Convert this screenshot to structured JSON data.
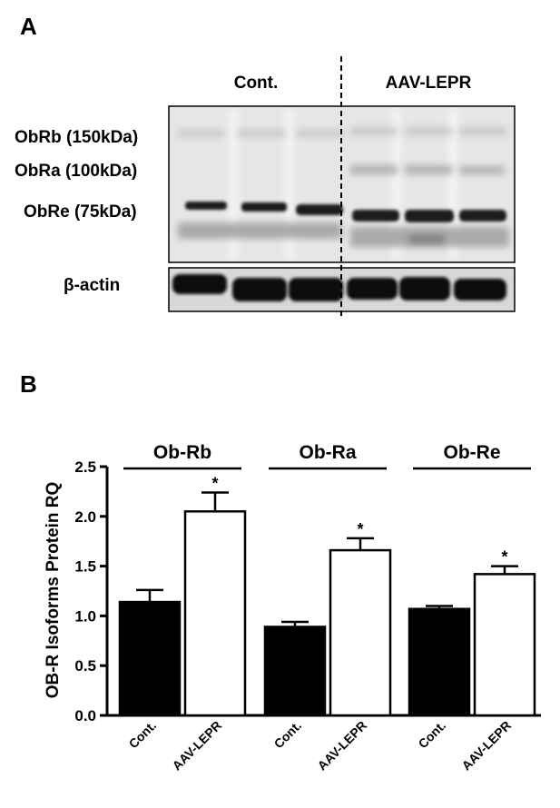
{
  "panel_a": {
    "panel_label": "A",
    "group_labels": [
      "Cont.",
      "AAV-LEPR"
    ],
    "band_labels": [
      "ObRb (150kDa)",
      "ObRa (100kDa)",
      "ObRe (75kDa)"
    ],
    "loading_label": "β-actin",
    "lanes_per_group": 3
  },
  "panel_b": {
    "panel_label": "B"
  },
  "chart_data": {
    "type": "bar",
    "ylabel": "OB-R Isoforms Protein RQ",
    "ylim": [
      0,
      2.5
    ],
    "yticks": [
      0.0,
      0.5,
      1.0,
      1.5,
      2.0,
      2.5
    ],
    "ytick_labels": [
      "0.0",
      "0.5",
      "1.0",
      "1.5",
      "2.0",
      "2.5"
    ],
    "groups": [
      {
        "name": "Ob-Rb",
        "categories": [
          "Cont.",
          "AAV-LEPR"
        ],
        "values": [
          1.14,
          2.05
        ],
        "errors": [
          0.12,
          0.19
        ],
        "significance": [
          "",
          "*"
        ]
      },
      {
        "name": "Ob-Ra",
        "categories": [
          "Cont.",
          "AAV-LEPR"
        ],
        "values": [
          0.89,
          1.66
        ],
        "errors": [
          0.05,
          0.12
        ],
        "significance": [
          "",
          "*"
        ]
      },
      {
        "name": "Ob-Re",
        "categories": [
          "Cont.",
          "AAV-LEPR"
        ],
        "values": [
          1.07,
          1.42
        ],
        "errors": [
          0.03,
          0.08
        ],
        "significance": [
          "",
          "*"
        ]
      }
    ],
    "colors": {
      "Cont.": "#000000",
      "AAV-LEPR": "#ffffff"
    }
  }
}
